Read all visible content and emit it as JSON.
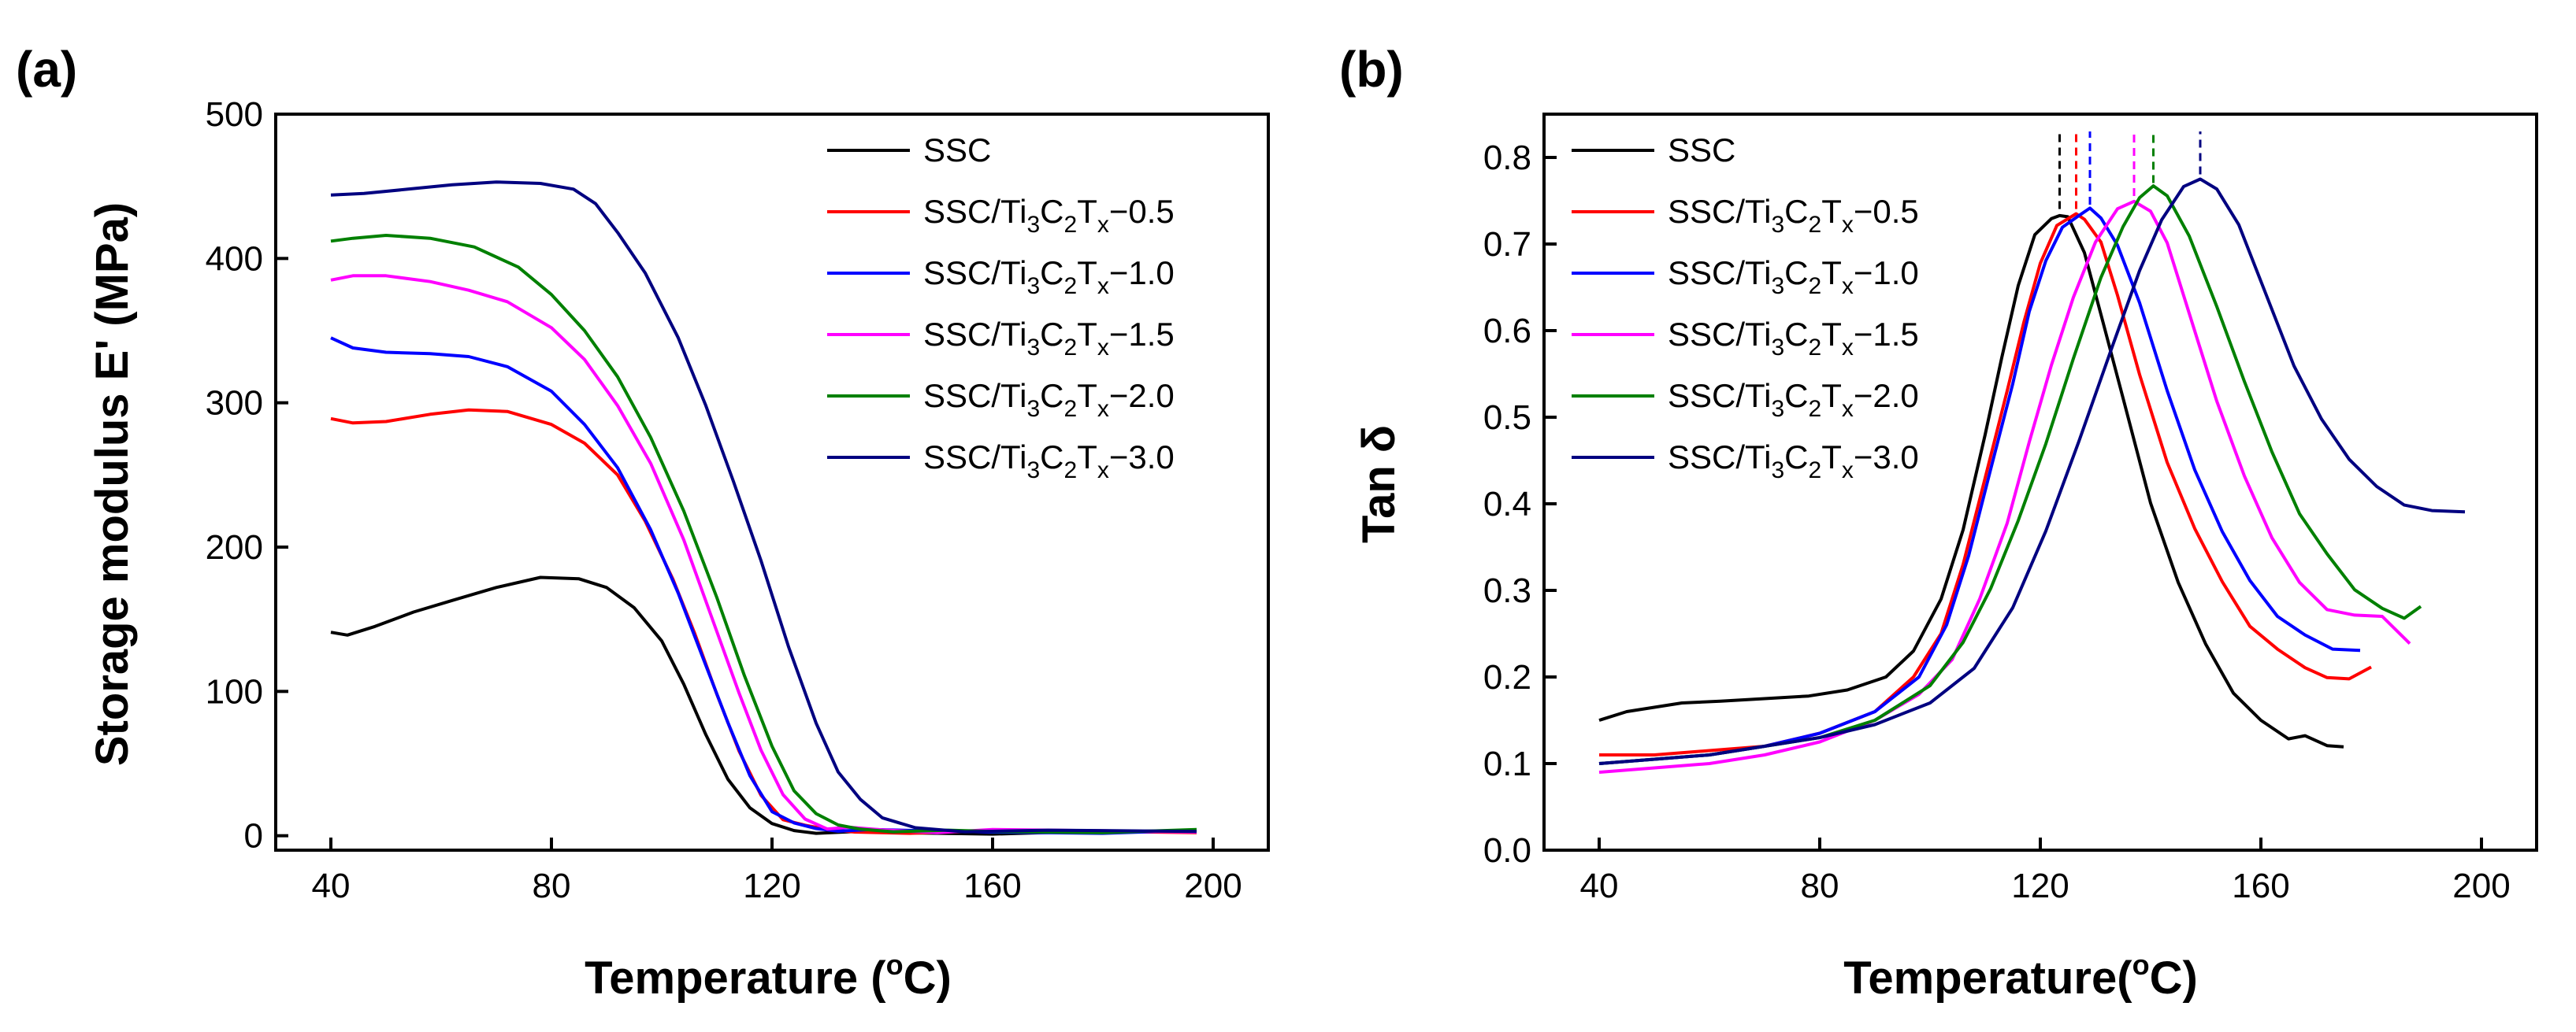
{
  "figure": {
    "panels": [
      {
        "label": "(a)",
        "ylabel_main": "Storage modulus E' (MPa)",
        "xlabel_pre": "Temperature (",
        "xlabel_sup": "o",
        "xlabel_post": "C)"
      },
      {
        "label": "(b)",
        "ylabel_main": "Tan δ",
        "xlabel_pre": "Temperature(",
        "xlabel_sup": "o",
        "xlabel_post": "C)"
      }
    ],
    "legend": [
      {
        "base": "SSC",
        "color": "#000000",
        "formula": false,
        "suffix": ""
      },
      {
        "base": "SSC/Ti",
        "color": "#ff0000",
        "formula": true,
        "suffix": "−0.5"
      },
      {
        "base": "SSC/Ti",
        "color": "#0000ff",
        "formula": true,
        "suffix": "−1.0"
      },
      {
        "base": "SSC/Ti",
        "color": "#ff00ff",
        "formula": true,
        "suffix": "−1.5"
      },
      {
        "base": "SSC/Ti",
        "color": "#008000",
        "formula": true,
        "suffix": "−2.0"
      },
      {
        "base": "SSC/Ti",
        "color": "#000080",
        "formula": true,
        "suffix": "−3.0"
      }
    ],
    "formula_parts": {
      "sub1": "3",
      "c": "C",
      "sub2": "2",
      "t": "T",
      "sub3": "x"
    }
  },
  "chart_data": [
    {
      "type": "line",
      "title": "(a)",
      "xlabel": "Temperature (oC)",
      "ylabel": "Storage modulus E' (MPa)",
      "xlim": [
        30,
        210
      ],
      "ylim": [
        -10,
        500
      ],
      "xticks": [
        40,
        80,
        120,
        160,
        200
      ],
      "yticks": [
        0,
        100,
        200,
        300,
        400,
        500
      ],
      "series": [
        {
          "name": "SSC",
          "color": "#000000",
          "x": [
            40,
            43,
            48,
            55,
            62,
            70,
            78,
            85,
            90,
            95,
            100,
            104,
            108,
            112,
            116,
            120,
            124,
            128,
            135,
            145,
            160,
            180,
            197
          ],
          "y": [
            141,
            139,
            145,
            155,
            163,
            172,
            179,
            178,
            172,
            158,
            135,
            105,
            70,
            40,
            18,
            8,
            4,
            3,
            2,
            2,
            2,
            2,
            2
          ]
        },
        {
          "name": "SSC/Ti3C2Tx−0.5",
          "color": "#ff0000",
          "x": [
            40,
            44,
            50,
            58,
            65,
            72,
            80,
            86,
            92,
            97,
            102,
            106,
            110,
            114,
            118,
            122,
            126,
            130,
            135,
            145,
            160,
            180,
            197
          ],
          "y": [
            289,
            286,
            287,
            292,
            295,
            294,
            285,
            272,
            250,
            218,
            178,
            140,
            98,
            58,
            28,
            12,
            6,
            4,
            3,
            3,
            3,
            3,
            3
          ]
        },
        {
          "name": "SSC/Ti3C2Tx−1.0",
          "color": "#0000ff",
          "x": [
            40,
            44,
            50,
            58,
            65,
            72,
            80,
            86,
            92,
            98,
            103,
            108,
            112,
            116,
            120,
            124,
            128,
            132,
            138,
            148,
            160,
            180,
            197
          ],
          "y": [
            345,
            338,
            335,
            334,
            332,
            325,
            308,
            285,
            255,
            212,
            168,
            118,
            78,
            42,
            18,
            8,
            5,
            4,
            3,
            3,
            3,
            3,
            3
          ]
        },
        {
          "name": "SSC/Ti3C2Tx−1.5",
          "color": "#ff00ff",
          "x": [
            40,
            44,
            50,
            58,
            65,
            72,
            80,
            86,
            92,
            98,
            104,
            109,
            114,
            118,
            122,
            126,
            130,
            134,
            140,
            150,
            160,
            180,
            197
          ],
          "y": [
            385,
            388,
            388,
            384,
            378,
            370,
            352,
            330,
            298,
            258,
            205,
            152,
            100,
            58,
            28,
            12,
            6,
            5,
            4,
            3,
            3,
            3,
            3
          ]
        },
        {
          "name": "SSC/Ti3C2Tx−2.0",
          "color": "#008000",
          "x": [
            40,
            44,
            50,
            58,
            66,
            74,
            80,
            86,
            92,
            98,
            104,
            110,
            115,
            120,
            124,
            128,
            132,
            136,
            142,
            152,
            160,
            180,
            197
          ],
          "y": [
            412,
            414,
            416,
            414,
            408,
            394,
            375,
            350,
            318,
            276,
            225,
            165,
            110,
            62,
            32,
            14,
            7,
            5,
            4,
            3,
            3,
            3,
            3
          ]
        },
        {
          "name": "SSC/Ti3C2Tx−3.0",
          "color": "#000080",
          "x": [
            40,
            46,
            54,
            62,
            70,
            78,
            84,
            88,
            92,
            97,
            103,
            108,
            113,
            118,
            123,
            128,
            132,
            136,
            140,
            146,
            155,
            170,
            197
          ],
          "y": [
            444,
            445,
            448,
            451,
            453,
            452,
            448,
            438,
            418,
            390,
            345,
            298,
            246,
            192,
            130,
            78,
            45,
            24,
            12,
            6,
            4,
            3,
            3
          ]
        }
      ]
    },
    {
      "type": "line",
      "title": "(b)",
      "xlabel": "Temperature(oC)",
      "ylabel": "Tan δ",
      "xlim": [
        30,
        210
      ],
      "ylim": [
        0.0,
        0.85
      ],
      "xticks": [
        40,
        80,
        120,
        160,
        200
      ],
      "yticks": [
        0.0,
        0.1,
        0.2,
        0.3,
        0.4,
        0.5,
        0.6,
        0.7,
        0.8
      ],
      "peak_markers": [
        {
          "x": 123.5,
          "y": 0.735,
          "color": "#000000"
        },
        {
          "x": 126.5,
          "y": 0.735,
          "color": "#ff0000"
        },
        {
          "x": 129,
          "y": 0.74,
          "color": "#0000ff"
        },
        {
          "x": 137,
          "y": 0.75,
          "color": "#ff00ff"
        },
        {
          "x": 140.5,
          "y": 0.765,
          "color": "#008000"
        },
        {
          "x": 149,
          "y": 0.775,
          "color": "#000080"
        }
      ],
      "series": [
        {
          "name": "SSC",
          "color": "#000000",
          "x": [
            40,
            45,
            50,
            55,
            62,
            70,
            78,
            85,
            92,
            97,
            102,
            106,
            110,
            113,
            116,
            119,
            122,
            123.5,
            125,
            128,
            131,
            135,
            140,
            145,
            150,
            155,
            160,
            165,
            168,
            172,
            175
          ],
          "y": [
            0.15,
            0.16,
            0.165,
            0.17,
            0.172,
            0.175,
            0.178,
            0.185,
            0.2,
            0.23,
            0.29,
            0.37,
            0.48,
            0.57,
            0.65,
            0.71,
            0.73,
            0.735,
            0.73,
            0.69,
            0.62,
            0.52,
            0.4,
            0.31,
            0.24,
            0.18,
            0.15,
            0.13,
            0.13,
            0.12,
            0.12
          ]
        },
        {
          "name": "SSC/Ti3C2Tx−0.5",
          "color": "#ff0000",
          "x": [
            40,
            50,
            60,
            70,
            80,
            90,
            97,
            102,
            106,
            110,
            114,
            117,
            120,
            123,
            126.5,
            128,
            131,
            134,
            138,
            143,
            148,
            153,
            158,
            163,
            168,
            172,
            176,
            180
          ],
          "y": [
            0.11,
            0.11,
            0.115,
            0.12,
            0.135,
            0.16,
            0.2,
            0.25,
            0.33,
            0.43,
            0.53,
            0.61,
            0.68,
            0.72,
            0.735,
            0.73,
            0.7,
            0.64,
            0.55,
            0.45,
            0.37,
            0.31,
            0.26,
            0.23,
            0.21,
            0.2,
            0.2,
            0.21
          ]
        },
        {
          "name": "SSC/Ti3C2Tx−1.0",
          "color": "#0000ff",
          "x": [
            40,
            50,
            60,
            70,
            80,
            90,
            98,
            103,
            107,
            111,
            115,
            118,
            121,
            124,
            127,
            129,
            131,
            134,
            138,
            143,
            148,
            153,
            158,
            163,
            168,
            173,
            178
          ],
          "y": [
            0.1,
            0.105,
            0.11,
            0.12,
            0.135,
            0.16,
            0.2,
            0.26,
            0.34,
            0.44,
            0.54,
            0.62,
            0.68,
            0.72,
            0.735,
            0.74,
            0.73,
            0.7,
            0.63,
            0.53,
            0.44,
            0.37,
            0.31,
            0.27,
            0.25,
            0.23,
            0.23
          ]
        },
        {
          "name": "SSC/Ti3C2Tx−1.5",
          "color": "#ff00ff",
          "x": [
            40,
            50,
            60,
            70,
            80,
            90,
            98,
            104,
            109,
            114,
            118,
            122,
            126,
            130,
            134,
            137,
            140,
            143,
            147,
            152,
            157,
            162,
            167,
            172,
            177,
            182,
            187
          ],
          "y": [
            0.09,
            0.095,
            0.1,
            0.11,
            0.125,
            0.15,
            0.18,
            0.22,
            0.29,
            0.38,
            0.47,
            0.56,
            0.64,
            0.7,
            0.74,
            0.75,
            0.74,
            0.7,
            0.62,
            0.52,
            0.43,
            0.36,
            0.31,
            0.28,
            0.27,
            0.27,
            0.24
          ]
        },
        {
          "name": "SSC/Ti3C2Tx−2.0",
          "color": "#008000",
          "x": [
            40,
            50,
            60,
            70,
            80,
            90,
            100,
            106,
            111,
            116,
            121,
            126,
            131,
            135,
            138,
            140.5,
            143,
            147,
            152,
            157,
            162,
            167,
            172,
            177,
            182,
            186,
            189
          ],
          "y": [
            0.1,
            0.105,
            0.11,
            0.12,
            0.13,
            0.15,
            0.19,
            0.24,
            0.3,
            0.38,
            0.47,
            0.57,
            0.66,
            0.72,
            0.755,
            0.765,
            0.755,
            0.71,
            0.63,
            0.54,
            0.46,
            0.39,
            0.34,
            0.3,
            0.28,
            0.27,
            0.28
          ]
        },
        {
          "name": "SSC/Ti3C2Tx−3.0",
          "color": "#000080",
          "x": [
            40,
            50,
            60,
            70,
            80,
            90,
            100,
            108,
            115,
            121,
            127,
            133,
            138,
            142,
            146,
            149,
            152,
            156,
            161,
            166,
            171,
            176,
            181,
            186,
            191,
            197
          ],
          "y": [
            0.1,
            0.105,
            0.11,
            0.12,
            0.13,
            0.145,
            0.17,
            0.21,
            0.28,
            0.37,
            0.47,
            0.58,
            0.67,
            0.73,
            0.765,
            0.775,
            0.765,
            0.72,
            0.64,
            0.56,
            0.5,
            0.45,
            0.42,
            0.4,
            0.39,
            0.39
          ]
        }
      ]
    }
  ]
}
